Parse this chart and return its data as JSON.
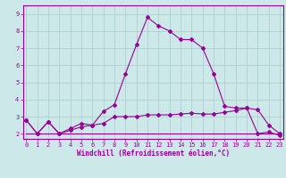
{
  "xlabel": "Windchill (Refroidissement éolien,°C)",
  "ylabel": "",
  "bg_color": "#cce8e8",
  "line_color": "#990099",
  "grid_color": "#aacccc",
  "x_ticks": [
    0,
    1,
    2,
    3,
    4,
    5,
    6,
    7,
    8,
    9,
    10,
    11,
    12,
    13,
    14,
    15,
    16,
    17,
    18,
    19,
    20,
    21,
    22,
    23
  ],
  "y_ticks": [
    2,
    3,
    4,
    5,
    6,
    7,
    8,
    9
  ],
  "ylim": [
    1.7,
    9.5
  ],
  "xlim": [
    -0.3,
    23.3
  ],
  "line1": [
    2.8,
    2.0,
    2.7,
    2.0,
    2.3,
    2.6,
    2.5,
    3.3,
    3.7,
    5.5,
    7.2,
    8.8,
    8.3,
    8.0,
    7.5,
    7.5,
    7.0,
    5.5,
    3.6,
    3.5,
    3.5,
    2.0,
    2.1,
    1.9
  ],
  "line2": [
    2.8,
    2.0,
    2.7,
    2.0,
    2.2,
    2.4,
    2.5,
    2.6,
    3.0,
    3.0,
    3.0,
    3.1,
    3.1,
    3.1,
    3.15,
    3.2,
    3.15,
    3.15,
    3.25,
    3.35,
    3.5,
    3.4,
    2.5,
    2.0
  ],
  "line3": [
    2.0,
    2.0,
    2.0,
    2.0,
    2.0,
    2.0,
    2.0,
    2.0,
    2.0,
    2.0,
    2.0,
    2.0,
    2.0,
    2.0,
    2.0,
    2.0,
    2.0,
    2.0,
    2.0,
    2.0,
    2.0,
    2.0,
    2.0,
    2.0
  ],
  "tick_fontsize": 5.0,
  "xlabel_fontsize": 5.5,
  "lw": 0.8,
  "marker_size": 2.0
}
